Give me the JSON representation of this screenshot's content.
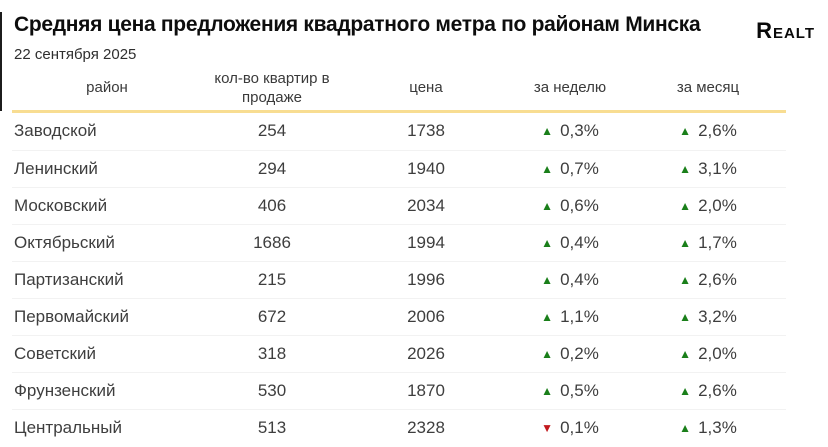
{
  "header": {
    "logo_text": "Realt"
  },
  "chart_data": {
    "type": "table",
    "title": "Средняя цена предложения квадратного метра по районам Минска",
    "subtitle": "22 сентября 2025",
    "columns": [
      "район",
      "кол-во квартир в продаже",
      "цена",
      "за неделю",
      "за месяц"
    ],
    "rows": [
      {
        "district": "Заводской",
        "apartments_for_sale": 254,
        "price": 1738,
        "week_trend": "up",
        "week_label": "0,3%",
        "month_trend": "up",
        "month_label": "2,6%"
      },
      {
        "district": "Ленинский",
        "apartments_for_sale": 294,
        "price": 1940,
        "week_trend": "up",
        "week_label": "0,7%",
        "month_trend": "up",
        "month_label": "3,1%"
      },
      {
        "district": "Московский",
        "apartments_for_sale": 406,
        "price": 2034,
        "week_trend": "up",
        "week_label": "0,6%",
        "month_trend": "up",
        "month_label": "2,0%"
      },
      {
        "district": "Октябрьский",
        "apartments_for_sale": 1686,
        "price": 1994,
        "week_trend": "up",
        "week_label": "0,4%",
        "month_trend": "up",
        "month_label": "1,7%"
      },
      {
        "district": "Партизанский",
        "apartments_for_sale": 215,
        "price": 1996,
        "week_trend": "up",
        "week_label": "0,4%",
        "month_trend": "up",
        "month_label": "2,6%"
      },
      {
        "district": "Первомайский",
        "apartments_for_sale": 672,
        "price": 2006,
        "week_trend": "up",
        "week_label": "1,1%",
        "month_trend": "up",
        "month_label": "3,2%"
      },
      {
        "district": "Советский",
        "apartments_for_sale": 318,
        "price": 2026,
        "week_trend": "up",
        "week_label": "0,2%",
        "month_trend": "up",
        "month_label": "2,0%"
      },
      {
        "district": "Фрунзенский",
        "apartments_for_sale": 530,
        "price": 1870,
        "week_trend": "up",
        "week_label": "0,5%",
        "month_trend": "up",
        "month_label": "2,6%"
      },
      {
        "district": "Центральный",
        "apartments_for_sale": 513,
        "price": 2328,
        "week_trend": "down",
        "week_label": "0,1%",
        "month_trend": "up",
        "month_label": "1,3%"
      }
    ]
  },
  "icons": {
    "trend_up_glyph": "▲",
    "trend_down_glyph": "▼"
  },
  "colors": {
    "trend_up": "#1a7f1a",
    "trend_down": "#c2191d",
    "header_underline": "#f8dd92",
    "row_divider": "#f2f2f2",
    "text": "#3e3e3e",
    "title": "#0d0d0d"
  }
}
